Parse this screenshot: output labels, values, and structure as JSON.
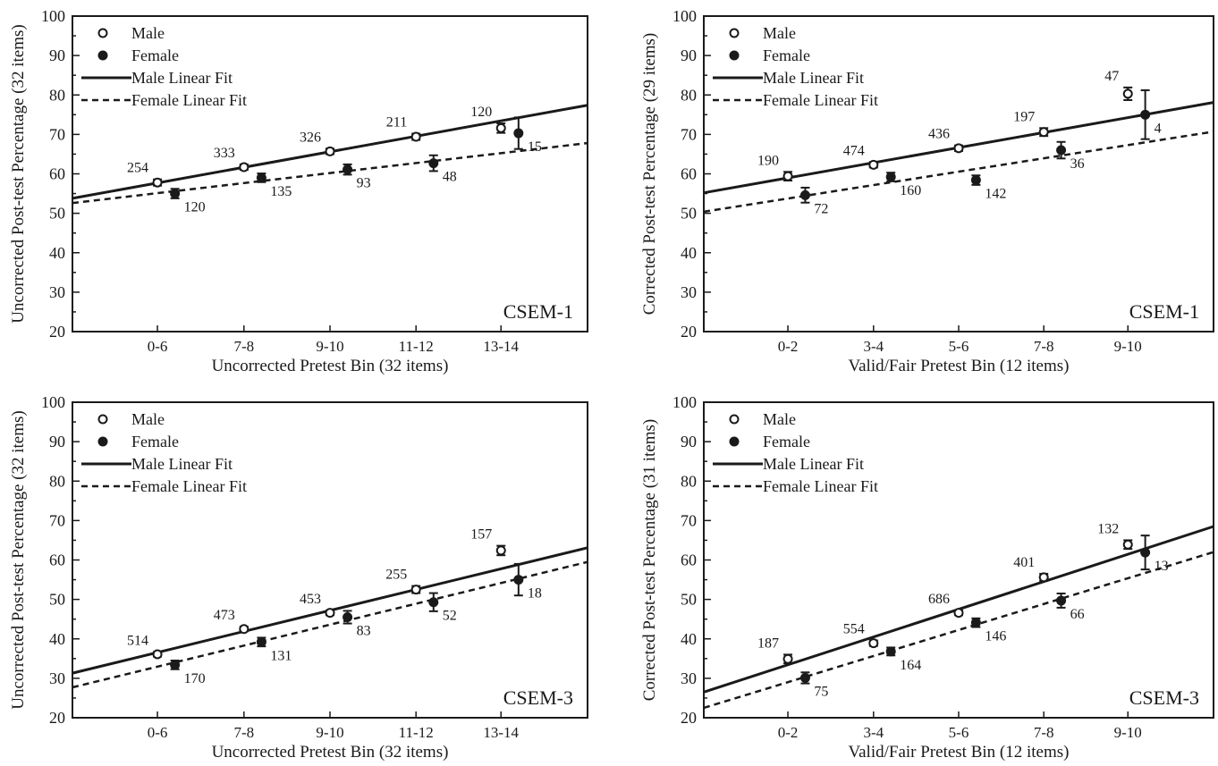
{
  "legend": {
    "male": "Male",
    "female": "Female",
    "male_fit": "Male Linear Fit",
    "female_fit": "Female Linear Fit"
  },
  "chart_data": [
    {
      "type": "scatter",
      "label": "CSEM-1",
      "xlabel": "Uncorrected Pretest Bin (32 items)",
      "ylabel": "Uncorrected Post-test Percentage (32 items)",
      "categories": [
        "0-6",
        "7-8",
        "9-10",
        "11-12",
        "13-14"
      ],
      "ylim": [
        20,
        100
      ],
      "yticks": [
        20,
        30,
        40,
        50,
        60,
        70,
        80,
        90,
        100
      ],
      "legend_position": "top-left",
      "series": [
        {
          "name": "Male",
          "values": [
            57.8,
            61.7,
            65.7,
            69.4,
            71.6
          ],
          "err": [
            0.8,
            0.7,
            0.7,
            0.8,
            1.2
          ],
          "n": [
            "254",
            "333",
            "326",
            "211",
            "120"
          ]
        },
        {
          "name": "Female",
          "values": [
            55.0,
            59.0,
            61.1,
            62.7,
            70.3
          ],
          "err": [
            1.2,
            1.1,
            1.3,
            2.0,
            4.0
          ],
          "n": [
            "120",
            "135",
            "93",
            "48",
            "15"
          ]
        }
      ],
      "fits": {
        "Male": [
          53.8,
          77.4
        ],
        "Female": [
          52.6,
          67.8
        ]
      }
    },
    {
      "type": "scatter",
      "label": "CSEM-1",
      "xlabel": "Valid/Fair Pretest Bin (12 items)",
      "ylabel": "Corrected Post-test Percentage (29 items)",
      "categories": [
        "0-2",
        "3-4",
        "5-6",
        "7-8",
        "9-10"
      ],
      "ylim": [
        20,
        100
      ],
      "yticks": [
        20,
        30,
        40,
        50,
        60,
        70,
        80,
        90,
        100
      ],
      "legend_position": "top-left",
      "series": [
        {
          "name": "Male",
          "values": [
            59.4,
            62.3,
            66.5,
            70.6,
            80.3
          ],
          "err": [
            1.1,
            0.7,
            0.7,
            1.0,
            1.6
          ],
          "n": [
            "190",
            "474",
            "436",
            "197",
            "47"
          ]
        },
        {
          "name": "Female",
          "values": [
            54.6,
            59.2,
            58.4,
            66.0,
            75.0
          ],
          "err": [
            1.9,
            1.1,
            1.2,
            2.1,
            6.2
          ],
          "n": [
            "72",
            "160",
            "142",
            "36",
            "4"
          ]
        }
      ],
      "fits": {
        "Male": [
          55.2,
          78.1
        ],
        "Female": [
          50.4,
          70.7
        ]
      }
    },
    {
      "type": "scatter",
      "label": "CSEM-3",
      "xlabel": "Uncorrected Pretest Bin (32 items)",
      "ylabel": "Uncorrected Post-test Percentage (32 items)",
      "categories": [
        "0-6",
        "7-8",
        "9-10",
        "11-12",
        "13-14"
      ],
      "ylim": [
        20,
        100
      ],
      "yticks": [
        20,
        30,
        40,
        50,
        60,
        70,
        80,
        90,
        100
      ],
      "legend_position": "top-left",
      "series": [
        {
          "name": "Male",
          "values": [
            36.1,
            42.5,
            46.6,
            52.5,
            62.4
          ],
          "err": [
            0.6,
            0.6,
            0.6,
            0.9,
            1.2
          ],
          "n": [
            "514",
            "473",
            "453",
            "255",
            "157"
          ]
        },
        {
          "name": "Female",
          "values": [
            33.4,
            39.2,
            45.5,
            49.3,
            55.0
          ],
          "err": [
            1.1,
            1.1,
            1.6,
            2.3,
            4.0
          ],
          "n": [
            "170",
            "131",
            "83",
            "52",
            "18"
          ]
        }
      ],
      "fits": {
        "Male": [
          31.3,
          63.1
        ],
        "Female": [
          27.7,
          59.5
        ]
      }
    },
    {
      "type": "scatter",
      "label": "CSEM-3",
      "xlabel": "Valid/Fair Pretest Bin (12 items)",
      "ylabel": "Corrected Post-test Percentage (31 items)",
      "categories": [
        "0-2",
        "3-4",
        "5-6",
        "7-8",
        "9-10"
      ],
      "ylim": [
        20,
        100
      ],
      "yticks": [
        20,
        30,
        40,
        50,
        60,
        70,
        80,
        90,
        100
      ],
      "legend_position": "top-left",
      "series": [
        {
          "name": "Male",
          "values": [
            34.9,
            38.9,
            46.6,
            55.6,
            63.9
          ],
          "err": [
            1.1,
            0.7,
            0.6,
            0.9,
            1.1
          ],
          "n": [
            "187",
            "554",
            "686",
            "401",
            "132"
          ]
        },
        {
          "name": "Female",
          "values": [
            30.1,
            36.8,
            44.1,
            49.7,
            61.9
          ],
          "err": [
            1.4,
            1.0,
            1.1,
            1.8,
            4.3
          ],
          "n": [
            "75",
            "164",
            "146",
            "66",
            "13"
          ]
        }
      ],
      "fits": {
        "Male": [
          26.5,
          68.5
        ],
        "Female": [
          22.5,
          62.0
        ]
      }
    }
  ]
}
